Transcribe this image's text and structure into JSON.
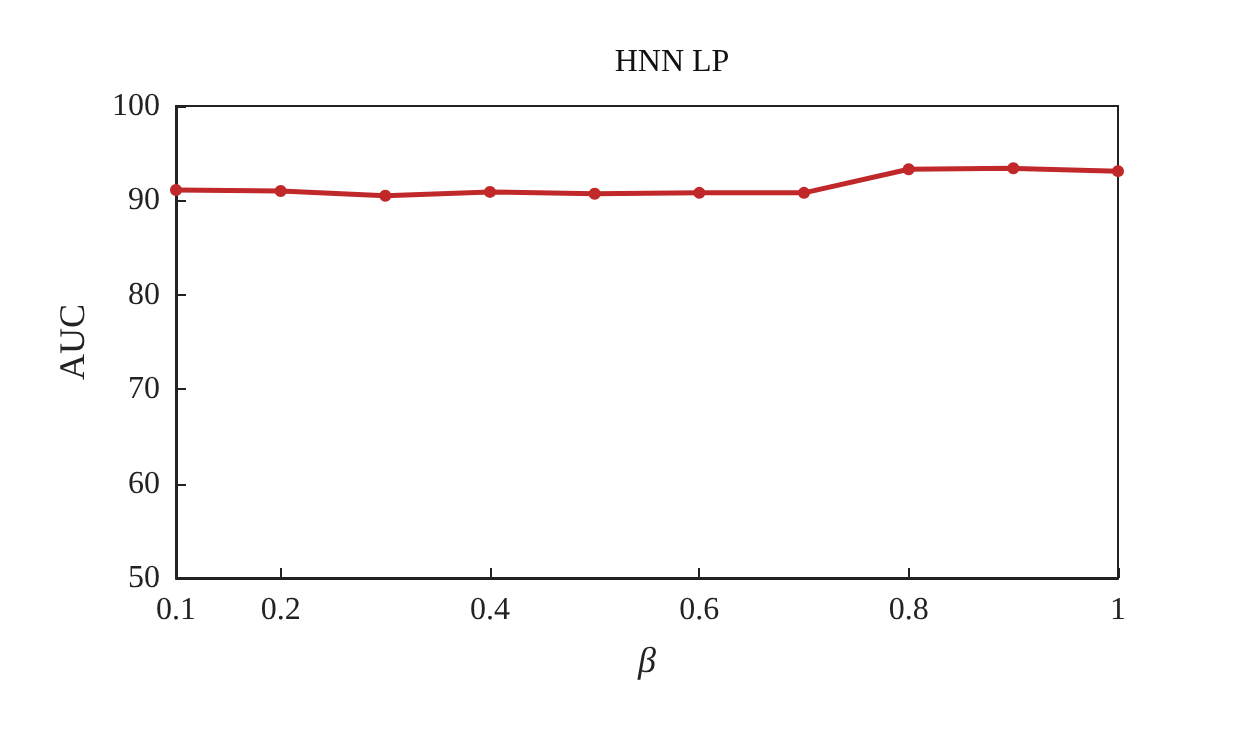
{
  "chart_data": {
    "type": "line",
    "title": "HNN LP",
    "xlabel": "β",
    "ylabel": "AUC",
    "x": [
      0.1,
      0.2,
      0.3,
      0.4,
      0.5,
      0.6,
      0.7,
      0.8,
      0.9,
      1
    ],
    "series": [
      {
        "color": "#c0282a",
        "values": [
          91.1,
          91.0,
          90.5,
          90.9,
          90.7,
          90.8,
          90.8,
          93.3,
          93.4,
          93.1
        ]
      }
    ],
    "xlim": [
      0.1,
      1
    ],
    "xticks": [
      0.1,
      0.2,
      0.4,
      0.6,
      0.8,
      1
    ],
    "ylim": [
      50,
      100
    ],
    "yticks": [
      50,
      60,
      70,
      80,
      90,
      100
    ],
    "marker": "circle",
    "line_style": "solid",
    "grid": false
  }
}
